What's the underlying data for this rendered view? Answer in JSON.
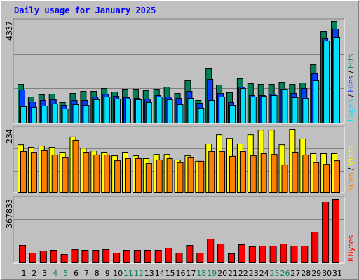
{
  "title": "Daily usage for January 2025",
  "legend_separator": "/",
  "chart_data": [
    {
      "type": "bar",
      "ylim": [
        0,
        4337
      ],
      "yticks": [
        4337
      ],
      "series": [
        {
          "name": "Hits",
          "color": "#00805c",
          "values": [
            1663,
            1129,
            1218,
            1248,
            891,
            1277,
            1366,
            1366,
            1485,
            1337,
            1455,
            1455,
            1396,
            1455,
            1545,
            1277,
            1812,
            980,
            2347,
            1634,
            1307,
            1901,
            1693,
            1663,
            1663,
            1752,
            1663,
            1723,
            2495,
            3891,
            4337
          ]
        },
        {
          "name": "Files",
          "color": "#0040ff",
          "values": [
            1426,
            921,
            980,
            1010,
            772,
            980,
            980,
            1129,
            1248,
            1158,
            1099,
            1069,
            1040,
            1188,
            1129,
            1069,
            1366,
            861,
            1871,
            1277,
            891,
            1545,
            1188,
            1188,
            1248,
            1455,
            1277,
            1485,
            2109,
            3594,
            4010
          ]
        },
        {
          "name": "Pages",
          "color": "#00e0ff",
          "values": [
            713,
            683,
            743,
            832,
            624,
            802,
            772,
            1010,
            1129,
            1040,
            1040,
            1010,
            891,
            1129,
            1010,
            802,
            1069,
            653,
            980,
            1129,
            772,
            1485,
            1129,
            1158,
            1188,
            1455,
            1099,
            1069,
            1812,
            3505,
            3653
          ]
        }
      ]
    },
    {
      "type": "bar",
      "ylim": [
        0,
        234
      ],
      "yticks": [
        234
      ],
      "series": [
        {
          "name": "Visits",
          "color": "#ffff00",
          "values": [
            177,
            167,
            172,
            167,
            149,
            206,
            164,
            154,
            149,
            136,
            149,
            136,
            126,
            141,
            141,
            121,
            136,
            116,
            180,
            213,
            200,
            180,
            213,
            231,
            231,
            177,
            234,
            198,
            144,
            144,
            144
          ]
        },
        {
          "name": "Sites",
          "color": "#ff8000",
          "values": [
            152,
            149,
            157,
            139,
            131,
            193,
            149,
            139,
            139,
            118,
            126,
            126,
            108,
            121,
            126,
            111,
            131,
            116,
            152,
            152,
            134,
            152,
            136,
            144,
            141,
            103,
            149,
            139,
            111,
            105,
            118
          ]
        }
      ]
    },
    {
      "type": "bar",
      "ylim": [
        0,
        367833
      ],
      "yticks": [
        367833
      ],
      "categories": [
        "1",
        "2",
        "3",
        "4",
        "5",
        "6",
        "7",
        "8",
        "9",
        "10",
        "11",
        "12",
        "13",
        "14",
        "15",
        "16",
        "17",
        "18",
        "19",
        "20",
        "21",
        "22",
        "23",
        "24",
        "25",
        "26",
        "27",
        "28",
        "29",
        "30",
        "31"
      ],
      "category_colors": [
        "#000000",
        "#000000",
        "#000000",
        "#00805c",
        "#00805c",
        "#000000",
        "#000000",
        "#000000",
        "#000000",
        "#000000",
        "#00805c",
        "#00805c",
        "#000000",
        "#000000",
        "#000000",
        "#000000",
        "#000000",
        "#00805c",
        "#00805c",
        "#000000",
        "#000000",
        "#000000",
        "#000000",
        "#000000",
        "#00805c",
        "#00805c",
        "#000000",
        "#000000",
        "#000000",
        "#000000",
        "#000000"
      ],
      "series": [
        {
          "name": "KBytes",
          "color": "#ff0000",
          "values": [
            103950,
            59970,
            71960,
            75960,
            51970,
            79960,
            75960,
            75960,
            79960,
            59970,
            75960,
            75960,
            75960,
            75960,
            87960,
            59970,
            103950,
            59970,
            139930,
            111940,
            55970,
            107950,
            95950,
            99950,
            99950,
            111940,
            99950,
            99950,
            179910,
            351820,
            367833
          ]
        }
      ]
    }
  ]
}
